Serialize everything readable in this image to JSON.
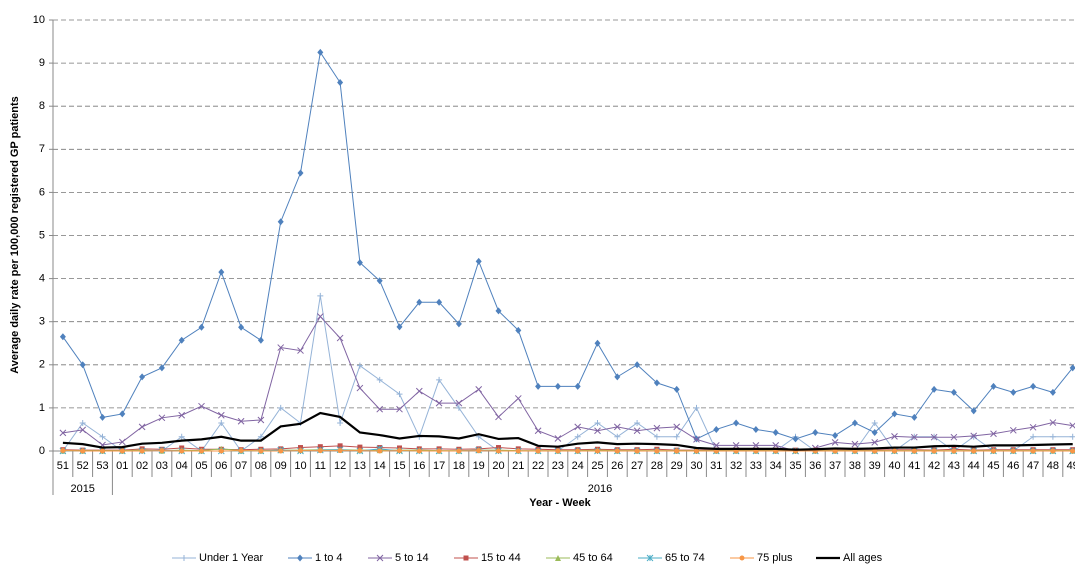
{
  "chart_data": {
    "type": "line",
    "y_label": "Average daily rate per 100,000 registered GP patients",
    "x_label": "Year - Week",
    "categories": [
      "51",
      "52",
      "53",
      "01",
      "02",
      "03",
      "04",
      "05",
      "06",
      "07",
      "08",
      "09",
      "10",
      "11",
      "12",
      "13",
      "14",
      "15",
      "16",
      "17",
      "18",
      "19",
      "20",
      "21",
      "22",
      "23",
      "24",
      "25",
      "26",
      "27",
      "28",
      "29",
      "30",
      "31",
      "32",
      "33",
      "34",
      "35",
      "36",
      "37",
      "38",
      "39",
      "40",
      "41",
      "42",
      "43",
      "44",
      "45",
      "46",
      "47",
      "48",
      "49"
    ],
    "groups": [
      {
        "label": "2015",
        "span": 3
      },
      {
        "label": "2016",
        "span": 49
      }
    ],
    "ylim": [
      0,
      10
    ],
    "yticks": [
      0,
      1,
      2,
      3,
      4,
      5,
      6,
      7,
      8,
      9,
      10
    ],
    "grid": true,
    "legend": "bottom",
    "series": [
      {
        "name": "Under 1 Year",
        "color": "#95b3d7",
        "marker": "plus",
        "values": [
          0,
          0.65,
          0.33,
          0,
          0,
          0,
          0.33,
          0,
          0.65,
          0,
          0.33,
          1.0,
          0.65,
          3.6,
          0.65,
          1.98,
          1.65,
          1.32,
          0.33,
          1.65,
          1.0,
          0.33,
          0,
          0,
          0,
          0,
          0.33,
          0.65,
          0.33,
          0.65,
          0.33,
          0.33,
          1.0,
          0,
          0,
          0,
          0,
          0.33,
          0,
          0,
          0,
          0.65,
          0,
          0.33,
          0.33,
          0,
          0.33,
          0,
          0,
          0.33,
          0.33,
          0.33
        ]
      },
      {
        "name": "1 to 4",
        "color": "#4f81bd",
        "marker": "diamond",
        "values": [
          2.65,
          2.0,
          0.78,
          0.86,
          1.72,
          1.93,
          2.57,
          2.87,
          4.15,
          2.87,
          2.57,
          5.32,
          6.45,
          9.25,
          8.55,
          4.37,
          3.95,
          2.88,
          3.45,
          3.45,
          2.95,
          4.4,
          3.25,
          2.8,
          1.5,
          1.5,
          1.5,
          2.5,
          1.72,
          2.0,
          1.58,
          1.43,
          0.28,
          0.5,
          0.65,
          0.5,
          0.43,
          0.28,
          0.43,
          0.36,
          0.65,
          0.43,
          0.86,
          0.78,
          1.43,
          1.36,
          0.93,
          1.5,
          1.36,
          1.5,
          1.36,
          1.93
        ]
      },
      {
        "name": "5 to 14",
        "color": "#8064a2",
        "marker": "x",
        "values": [
          0.42,
          0.49,
          0.14,
          0.21,
          0.56,
          0.77,
          0.83,
          1.04,
          0.83,
          0.69,
          0.72,
          2.4,
          2.33,
          3.12,
          2.62,
          1.46,
          0.97,
          0.97,
          1.39,
          1.11,
          1.11,
          1.43,
          0.79,
          1.22,
          0.47,
          0.29,
          0.56,
          0.47,
          0.56,
          0.47,
          0.53,
          0.56,
          0.27,
          0.13,
          0.13,
          0.13,
          0.13,
          0.0,
          0.07,
          0.2,
          0.16,
          0.2,
          0.34,
          0.32,
          0.32,
          0.32,
          0.35,
          0.4,
          0.48,
          0.55,
          0.66,
          0.59
        ]
      },
      {
        "name": "15 to 44",
        "color": "#c0504d",
        "marker": "square",
        "values": [
          0.03,
          0.02,
          0.02,
          0.02,
          0.05,
          0.04,
          0.07,
          0.04,
          0.04,
          0.03,
          0.04,
          0.05,
          0.08,
          0.1,
          0.12,
          0.09,
          0.08,
          0.07,
          0.05,
          0.05,
          0.04,
          0.05,
          0.08,
          0.05,
          0.04,
          0.03,
          0.03,
          0.04,
          0.03,
          0.03,
          0.04,
          0.02,
          0.02,
          0.02,
          0.02,
          0.02,
          0.02,
          0.02,
          0.02,
          0.02,
          0.02,
          0.02,
          0.03,
          0.03,
          0.02,
          0.04,
          0.02,
          0.03,
          0.03,
          0.03,
          0.03,
          0.03
        ]
      },
      {
        "name": "45 to 64",
        "color": "#9bbb59",
        "marker": "triangle",
        "values": [
          0.01,
          0.01,
          0.01,
          0.01,
          0.02,
          0.01,
          0.02,
          0.01,
          0.05,
          0.01,
          0.01,
          0.02,
          0.02,
          0.03,
          0.03,
          0.02,
          0.02,
          0.02,
          0.02,
          0.01,
          0.01,
          0.02,
          0.02,
          0.01,
          0.01,
          0.01,
          0.01,
          0.02,
          0.01,
          0.01,
          0.01,
          0.01,
          0.01,
          0.01,
          0.01,
          0.01,
          0.01,
          0.01,
          0.01,
          0.01,
          0.01,
          0.01,
          0.01,
          0.01,
          0.01,
          0.01,
          0.01,
          0.01,
          0.01,
          0.01,
          0.01,
          0.01
        ]
      },
      {
        "name": "65 to 74",
        "color": "#4bacc6",
        "marker": "star",
        "values": [
          0,
          0,
          0,
          0,
          0,
          0.02,
          0,
          0,
          0,
          0,
          0,
          0.02,
          0,
          0.02,
          0.03,
          0,
          0.05,
          0,
          0,
          0,
          0,
          0.02,
          0,
          0,
          0,
          0,
          0,
          0,
          0,
          0,
          0,
          0,
          0,
          0,
          0,
          0,
          0,
          0,
          0,
          0,
          0,
          0,
          0,
          0,
          0,
          0,
          0,
          0,
          0,
          0,
          0,
          0
        ]
      },
      {
        "name": "75 plus",
        "color": "#f79646",
        "marker": "circle",
        "values": [
          0.01,
          0,
          0,
          0,
          0,
          0.01,
          0,
          0,
          0,
          0.01,
          0,
          0,
          0.01,
          0.01,
          0.01,
          0.01,
          0,
          0.01,
          0,
          0,
          0,
          0.01,
          0,
          0,
          0,
          0,
          0,
          0,
          0,
          0,
          0,
          0,
          0,
          0,
          0,
          0,
          0,
          0,
          0,
          0,
          0,
          0,
          0,
          0,
          0,
          0,
          0,
          0,
          0,
          0,
          0,
          0
        ]
      },
      {
        "name": "All ages",
        "color": "#000000",
        "marker": "none",
        "values": [
          0.19,
          0.16,
          0.08,
          0.09,
          0.17,
          0.19,
          0.24,
          0.27,
          0.33,
          0.24,
          0.24,
          0.57,
          0.63,
          0.88,
          0.79,
          0.43,
          0.37,
          0.29,
          0.35,
          0.34,
          0.29,
          0.39,
          0.28,
          0.3,
          0.12,
          0.1,
          0.17,
          0.2,
          0.16,
          0.17,
          0.16,
          0.14,
          0.07,
          0.05,
          0.05,
          0.05,
          0.05,
          0.03,
          0.04,
          0.06,
          0.05,
          0.06,
          0.08,
          0.08,
          0.11,
          0.12,
          0.1,
          0.13,
          0.13,
          0.14,
          0.15,
          0.16
        ]
      }
    ]
  }
}
